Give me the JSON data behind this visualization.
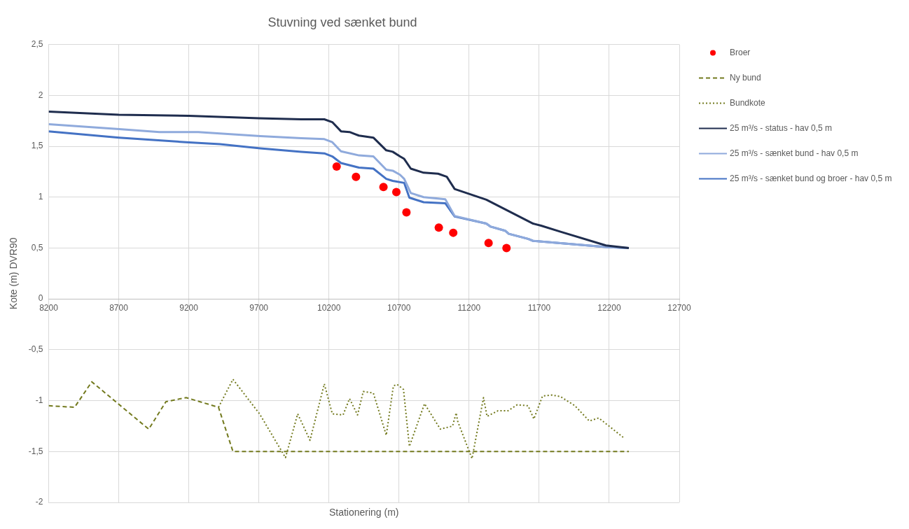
{
  "chart_data": {
    "type": "line",
    "title": "Stuvning ved sænket bund",
    "xlabel": "Stationering (m)",
    "ylabel": "Kote (m) DVR90",
    "xlim": [
      8200,
      12700
    ],
    "xticks": [
      8200,
      8700,
      9200,
      9700,
      10200,
      10700,
      11200,
      11700,
      12200,
      12700
    ],
    "ylim": [
      -2,
      2.5
    ],
    "yticks": [
      {
        "value": -2,
        "label": "-2"
      },
      {
        "value": -1.5,
        "label": "-1,5"
      },
      {
        "value": -1,
        "label": "-1"
      },
      {
        "value": -0.5,
        "label": "-0,5"
      },
      0,
      {
        "value": 0.5,
        "label": "0,5"
      },
      1,
      {
        "value": 1.5,
        "label": "1,5"
      },
      2,
      {
        "value": 2.5,
        "label": "2,5"
      }
    ],
    "grid": true,
    "legend": "right",
    "series": [
      {
        "name": "Broer",
        "type": "scatter",
        "marker": "circle",
        "color": "#ff0000",
        "x": [
          10255,
          10393,
          10589,
          10681,
          10753,
          10984,
          11087,
          11339,
          11467
        ],
        "values": [
          1.3,
          1.2,
          1.1,
          1.05,
          0.85,
          0.7,
          0.65,
          0.55,
          0.5
        ]
      },
      {
        "name": "Ny bund",
        "type": "line",
        "marker": "none",
        "line_style": "dashed",
        "color": "#737a1e",
        "x": [
          8200,
          8385,
          8508,
          8914,
          9037,
          9181,
          9412,
          9515,
          12340
        ],
        "values": [
          -1.05,
          -1.065,
          -0.815,
          -1.28,
          -1.01,
          -0.97,
          -1.065,
          -1.5,
          -1.5
        ]
      },
      {
        "name": "Bundkote",
        "type": "line",
        "marker": "none",
        "line_style": "dotted",
        "color": "#737a1e",
        "x": [
          9412,
          9515,
          9705,
          9890,
          9977,
          10065,
          10167,
          10224,
          10301,
          10347,
          10404,
          10445,
          10517,
          10609,
          10660,
          10686,
          10732,
          10774,
          10882,
          10995,
          11082,
          11108,
          11118,
          11221,
          11303,
          11328,
          11405,
          11477,
          11544,
          11621,
          11662,
          11724,
          11791,
          11852,
          11955,
          12058,
          12125,
          12299
        ],
        "values": [
          -1.065,
          -0.79,
          -1.13,
          -1.56,
          -1.13,
          -1.39,
          -0.835,
          -1.13,
          -1.14,
          -0.98,
          -1.14,
          -0.91,
          -0.925,
          -1.34,
          -0.855,
          -0.84,
          -0.89,
          -1.45,
          -1.03,
          -1.28,
          -1.25,
          -1.12,
          -1.2,
          -1.57,
          -0.97,
          -1.155,
          -1.1,
          -1.1,
          -1.04,
          -1.05,
          -1.18,
          -0.955,
          -0.945,
          -0.96,
          -1.05,
          -1.2,
          -1.17,
          -1.36
        ]
      },
      {
        "name": "25 m³/s - status - hav 0,5 m",
        "type": "line",
        "marker": "none",
        "line_style": "solid",
        "color": "#1f2d4e",
        "x": [
          8200,
          8700,
          9200,
          9700,
          10003,
          10167,
          10224,
          10286,
          10347,
          10414,
          10517,
          10609,
          10655,
          10707,
          10737,
          10784,
          10876,
          10979,
          11041,
          11097,
          11323,
          11657,
          11714,
          11852,
          12176,
          12340
        ],
        "values": [
          1.84,
          1.81,
          1.8,
          1.775,
          1.765,
          1.765,
          1.737,
          1.647,
          1.64,
          1.605,
          1.585,
          1.46,
          1.446,
          1.4,
          1.376,
          1.28,
          1.24,
          1.23,
          1.2,
          1.08,
          0.975,
          0.74,
          0.72,
          0.66,
          0.525,
          0.5
        ]
      },
      {
        "name": "25 m³/s - sænket bund - hav 0,5 m",
        "type": "line",
        "marker": "none",
        "line_style": "solid",
        "color": "#8faadc",
        "x": [
          8200,
          8703,
          8991,
          9268,
          9710,
          10003,
          10167,
          10224,
          10286,
          10414,
          10517,
          10609,
          10655,
          10707,
          10737,
          10784,
          10876,
          11030,
          11097,
          11323,
          11354,
          11457,
          11483,
          11621,
          11657,
          12176,
          12340
        ],
        "values": [
          1.716,
          1.668,
          1.64,
          1.64,
          1.6,
          1.58,
          1.57,
          1.54,
          1.45,
          1.41,
          1.4,
          1.27,
          1.26,
          1.22,
          1.18,
          1.04,
          1.0,
          0.98,
          0.815,
          0.74,
          0.71,
          0.67,
          0.64,
          0.59,
          0.57,
          0.51,
          0.5
        ]
      },
      {
        "name": "25 m³/s - sænket bund og broer - hav 0,5 m",
        "type": "line",
        "marker": "none",
        "line_style": "solid",
        "color": "#4472c4",
        "x": [
          8200,
          8703,
          9181,
          9422,
          9710,
          10003,
          10167,
          10224,
          10286,
          10414,
          10517,
          10609,
          10655,
          10737,
          10774,
          10876,
          11030,
          11097,
          11323,
          11354,
          11457,
          11483,
          11621,
          11657,
          12176,
          12340
        ],
        "values": [
          1.647,
          1.585,
          1.54,
          1.52,
          1.48,
          1.445,
          1.43,
          1.4,
          1.335,
          1.29,
          1.28,
          1.18,
          1.16,
          1.14,
          0.995,
          0.95,
          0.94,
          0.81,
          0.74,
          0.71,
          0.67,
          0.64,
          0.59,
          0.57,
          0.51,
          0.5
        ]
      }
    ]
  }
}
